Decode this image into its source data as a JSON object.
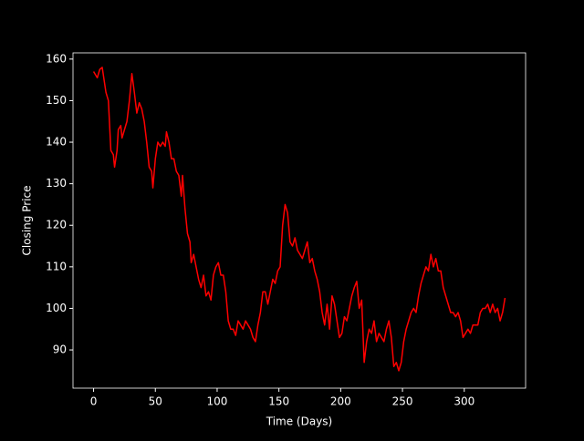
{
  "chart_data": {
    "type": "line",
    "xlabel": "Time (Days)",
    "ylabel": "Closing Price",
    "xlim": [
      -16.65,
      349.65
    ],
    "ylim": [
      80.8,
      161.5
    ],
    "xticks": [
      0,
      50,
      100,
      150,
      200,
      250,
      300
    ],
    "yticks": [
      90,
      100,
      110,
      120,
      130,
      140,
      150,
      160
    ],
    "x": [
      0,
      3,
      5,
      7,
      10,
      12,
      14,
      16,
      17,
      19,
      20,
      22,
      23,
      25,
      27,
      29,
      31,
      33,
      35,
      37,
      39,
      41,
      43,
      45,
      47,
      48,
      50,
      52,
      54,
      56,
      58,
      59,
      61,
      63,
      65,
      67,
      69,
      71,
      72,
      74,
      76,
      78,
      79,
      81,
      83,
      85,
      87,
      89,
      91,
      93,
      95,
      97,
      99,
      101,
      103,
      105,
      107,
      109,
      111,
      113,
      115,
      117,
      119,
      121,
      123,
      125,
      127,
      129,
      131,
      133,
      135,
      137,
      139,
      141,
      143,
      145,
      147,
      149,
      151,
      153,
      155,
      157,
      159,
      161,
      163,
      165,
      167,
      169,
      171,
      173,
      175,
      177,
      179,
      181,
      183,
      185,
      187,
      189,
      191,
      193,
      195,
      197,
      199,
      201,
      203,
      205,
      207,
      209,
      211,
      213,
      215,
      217,
      219,
      221,
      223,
      225,
      227,
      229,
      231,
      233,
      235,
      237,
      239,
      241,
      243,
      245,
      247,
      249,
      251,
      253,
      255,
      257,
      259,
      261,
      263,
      265,
      267,
      269,
      271,
      273,
      275,
      277,
      279,
      281,
      283,
      285,
      287,
      289,
      291,
      293,
      295,
      297,
      299,
      301,
      303,
      305,
      307,
      309,
      311,
      313,
      315,
      317,
      319,
      321,
      323,
      325,
      327,
      329,
      331,
      333
    ],
    "series": [
      {
        "color": "#ff0000",
        "values": [
          157,
          155.5,
          157.5,
          158,
          152,
          150,
          138,
          137,
          134,
          138,
          143,
          144,
          141,
          143,
          145,
          150,
          156.5,
          152,
          147,
          149.5,
          148,
          145,
          140,
          134,
          133,
          129,
          136,
          140,
          139,
          140,
          139,
          142.5,
          140,
          136,
          136,
          133,
          132,
          127,
          132,
          124,
          118,
          116,
          111,
          113,
          110,
          107,
          105,
          108,
          103,
          104,
          102,
          108,
          110,
          111,
          108,
          108,
          104,
          97,
          95,
          95,
          93.5,
          97,
          96,
          95,
          97,
          96,
          95,
          93,
          92,
          96,
          99,
          104,
          104,
          101,
          104,
          107,
          106,
          109,
          110,
          120,
          125,
          123,
          116,
          115,
          117,
          114,
          113,
          112,
          114,
          116,
          111,
          112,
          109,
          107,
          104,
          99,
          96,
          101,
          95,
          103,
          101,
          97,
          93,
          94,
          98,
          97,
          100,
          103,
          105,
          106.5,
          100,
          102,
          87,
          92,
          95,
          94,
          97,
          92,
          94,
          93,
          92,
          95,
          97,
          93,
          86,
          87,
          85,
          87,
          92,
          95,
          97,
          99,
          100,
          99,
          103,
          106,
          108,
          110,
          109,
          113,
          110,
          112,
          109,
          109,
          105,
          103,
          101,
          99,
          99,
          98,
          99,
          97,
          93,
          94,
          95,
          94,
          96,
          96,
          96,
          99,
          100,
          100,
          101,
          99,
          101,
          99,
          100,
          97,
          99,
          102.5
        ]
      }
    ]
  }
}
